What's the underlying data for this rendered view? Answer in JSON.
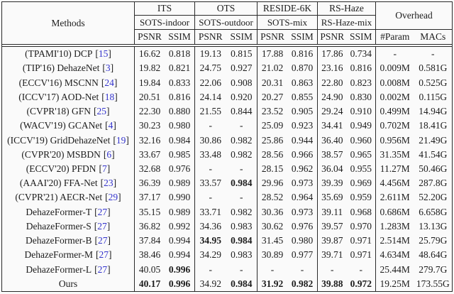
{
  "table": {
    "cite_open": "[",
    "cite_close": "]",
    "header": {
      "methods_label": "Methods",
      "groups": [
        {
          "dataset": "ITS",
          "subset": "SOTS-indoor",
          "metric1": "PSNR",
          "metric2": "SSIM"
        },
        {
          "dataset": "OTS",
          "subset": "SOTS-outdoor",
          "metric1": "PSNR",
          "metric2": "SSIM"
        },
        {
          "dataset": "RESIDE-6K",
          "subset": "SOTS-mix",
          "metric1": "PSNR",
          "metric2": "SSIM"
        },
        {
          "dataset": "RS-Haze",
          "subset": "RS-Haze-mix",
          "metric1": "PSNR",
          "metric2": "SSIM"
        }
      ],
      "overhead": {
        "label": "Overhead",
        "metric1": "#Param",
        "metric2": "MACs"
      }
    },
    "rows": [
      {
        "name": "(TPAMI'10) DCP",
        "cite": "15",
        "values": [
          "16.62",
          "0.818",
          "19.13",
          "0.815",
          "17.88",
          "0.816",
          "17.86",
          "0.734",
          "-",
          "-"
        ],
        "bold": []
      },
      {
        "name": "(TIP'16) DehazeNet",
        "cite": "3",
        "values": [
          "19.82",
          "0.821",
          "24.75",
          "0.927",
          "21.02",
          "0.870",
          "23.16",
          "0.816",
          "0.009M",
          "0.581G"
        ],
        "bold": []
      },
      {
        "name": "(ECCV'16) MSCNN",
        "cite": "24",
        "values": [
          "19.84",
          "0.833",
          "22.06",
          "0.908",
          "20.31",
          "0.863",
          "22.80",
          "0.823",
          "0.008M",
          "0.525G"
        ],
        "bold": []
      },
      {
        "name": "(ICCV'17) AOD-Net",
        "cite": "18",
        "values": [
          "20.51",
          "0.816",
          "24.14",
          "0.920",
          "20.27",
          "0.855",
          "24.90",
          "0.830",
          "0.002M",
          "0.115G"
        ],
        "bold": []
      },
      {
        "name": "(CVPR'18) GFN",
        "cite": "25",
        "values": [
          "22.30",
          "0.880",
          "21.55",
          "0.844",
          "23.52",
          "0.905",
          "29.24",
          "0.910",
          "0.499M",
          "14.94G"
        ],
        "bold": []
      },
      {
        "name": "(WACV'19) GCANet",
        "cite": "4",
        "values": [
          "30.23",
          "0.980",
          "-",
          "-",
          "25.09",
          "0.923",
          "34.41",
          "0.949",
          "0.702M",
          "18.41G"
        ],
        "bold": []
      },
      {
        "name": "(ICCV'19) GridDehazeNet",
        "cite": "19",
        "values": [
          "32.16",
          "0.984",
          "30.86",
          "0.982",
          "25.86",
          "0.944",
          "36.40",
          "0.960",
          "0.956M",
          "21.49G"
        ],
        "bold": []
      },
      {
        "name": "(CVPR'20) MSBDN",
        "cite": "6",
        "values": [
          "33.67",
          "0.985",
          "33.48",
          "0.982",
          "28.56",
          "0.966",
          "38.57",
          "0.965",
          "31.35M",
          "41.54G"
        ],
        "bold": []
      },
      {
        "name": "(ECCV'20) PFDN",
        "cite": "7",
        "values": [
          "32.68",
          "0.976",
          "-",
          "-",
          "28.15",
          "0.962",
          "36.04",
          "0.955",
          "11.27M",
          "50.46G"
        ],
        "bold": []
      },
      {
        "name": "(AAAI'20) FFA-Net",
        "cite": "23",
        "values": [
          "36.39",
          "0.989",
          "33.57",
          "0.984",
          "29.96",
          "0.973",
          "39.39",
          "0.969",
          "4.456M",
          "287.8G"
        ],
        "bold": [
          3
        ]
      },
      {
        "name": "(CVPR'21) AECR-Net",
        "cite": "29",
        "values": [
          "37.17",
          "0.990",
          "-",
          "-",
          "28.52",
          "0.964",
          "35.69",
          "0.959",
          "2.611M",
          "52.20G"
        ],
        "bold": []
      },
      {
        "name": "DehazeFormer-T",
        "cite": "27",
        "values": [
          "35.15",
          "0.989",
          "33.71",
          "0.982",
          "30.36",
          "0.973",
          "39.11",
          "0.968",
          "0.686M",
          "6.658G"
        ],
        "bold": []
      },
      {
        "name": "DehazeFormer-S",
        "cite": "27",
        "values": [
          "36.82",
          "0.992",
          "34.36",
          "0.983",
          "30.62",
          "0.976",
          "39.57",
          "0.970",
          "1.283M",
          "13.13G"
        ],
        "bold": []
      },
      {
        "name": "DehazeFormer-B",
        "cite": "27",
        "values": [
          "37.84",
          "0.994",
          "34.95",
          "0.984",
          "31.45",
          "0.980",
          "39.87",
          "0.971",
          "2.514M",
          "25.79G"
        ],
        "bold": [
          2,
          3
        ]
      },
      {
        "name": "DehazeFormer-M",
        "cite": "27",
        "values": [
          "38.46",
          "0.994",
          "34.29",
          "0.983",
          "30.89",
          "0.977",
          "39.71",
          "0.971",
          "4.634M",
          "48.64G"
        ],
        "bold": []
      },
      {
        "name": "DehazeFormer-L",
        "cite": "27",
        "values": [
          "40.05",
          "0.996",
          "-",
          "-",
          "-",
          "-",
          "-",
          "-",
          "25.44M",
          "279.7G"
        ],
        "bold": [
          1
        ]
      },
      {
        "name": "Ours",
        "cite": null,
        "values": [
          "40.17",
          "0.996",
          "34.92",
          "0.984",
          "31.92",
          "0.982",
          "39.88",
          "0.972",
          "19.25M",
          "173.55G"
        ],
        "bold": [
          0,
          1,
          3,
          4,
          5,
          6,
          7
        ]
      }
    ]
  }
}
